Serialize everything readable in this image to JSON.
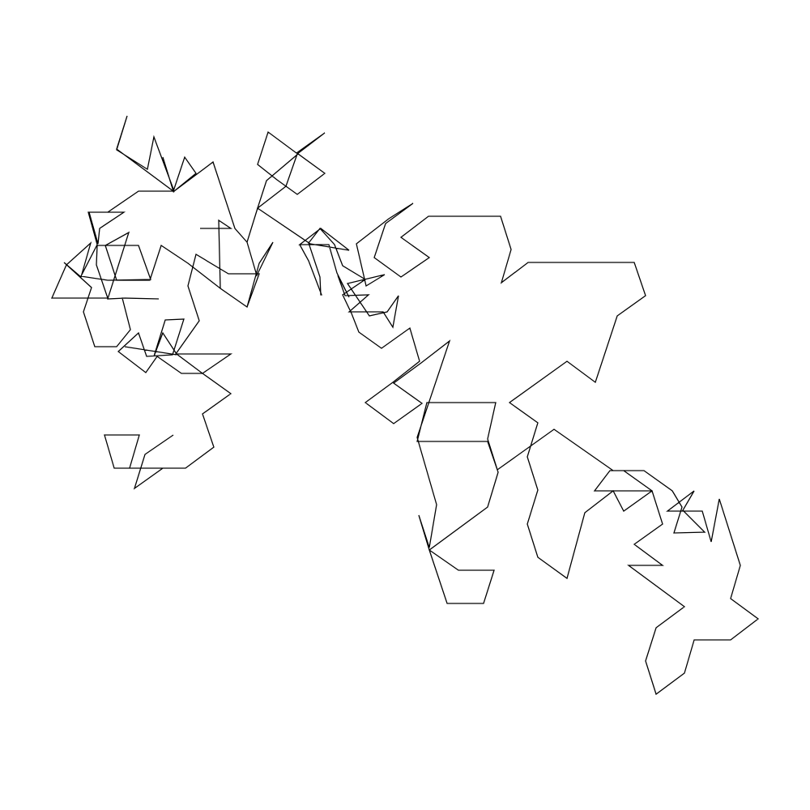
{
  "figure": {
    "kind": "unlabeled line drawing",
    "stroke_color": "#000000",
    "background_color": "#ffffff",
    "segment_count": 258
  }
}
